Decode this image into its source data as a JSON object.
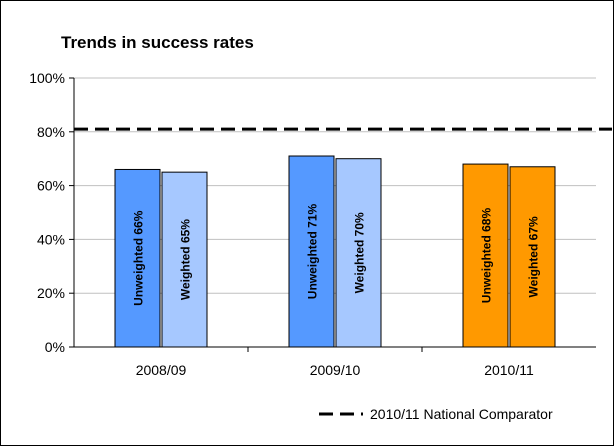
{
  "chart_data": {
    "type": "bar",
    "title": "Trends in success rates",
    "categories": [
      "2008/09",
      "2009/10",
      "2010/11"
    ],
    "series": [
      {
        "name": "Unweighted",
        "values": [
          66,
          71,
          68
        ],
        "bar_labels": [
          "Unweighted 66%",
          "Unweighted 71%",
          "Unweighted 68%"
        ],
        "colors": [
          "#5599ff",
          "#5599ff",
          "#ff9900"
        ]
      },
      {
        "name": "Weighted",
        "values": [
          65,
          70,
          67
        ],
        "bar_labels": [
          "Weighted 65%",
          "Weighted 70%",
          "Weighted 67%"
        ],
        "colors": [
          "#a6c8ff",
          "#a6c8ff",
          "#ff9900"
        ]
      }
    ],
    "reference_line": {
      "label": "2010/11 National Comparator",
      "value": 81,
      "style": "dashed"
    },
    "ylim": [
      0,
      100
    ],
    "yticks": [
      0,
      20,
      40,
      60,
      80,
      100
    ],
    "ytick_labels": [
      "0%",
      "20%",
      "40%",
      "60%",
      "80%",
      "100%"
    ],
    "grid": true,
    "legend_position": "bottom-right"
  }
}
